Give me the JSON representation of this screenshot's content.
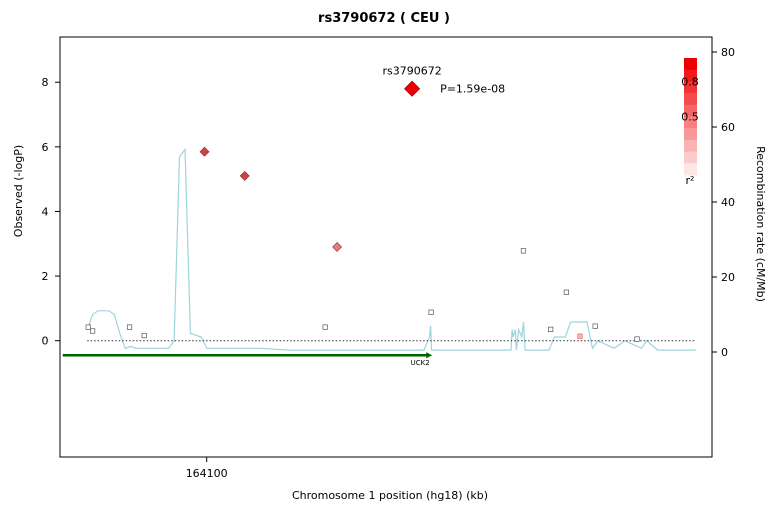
{
  "chart_data": {
    "type": "scatter",
    "title": "rs3790672 ( CEU )",
    "xlabel": "Chromosome 1 position (hg18) (kb)",
    "ylabel": "Observed (-logP)",
    "y2label": "Recombination rate (cM/Mb)",
    "xlim": [
      164073,
      164193
    ],
    "ylim": [
      -3.6,
      9.4
    ],
    "y2lim": [
      -28,
      84
    ],
    "x_ticks": [
      164100
    ],
    "y_ticks": [
      0,
      2,
      4,
      6,
      8
    ],
    "y2_ticks": [
      0,
      20,
      40,
      60,
      80
    ],
    "grid": false,
    "colors": {
      "recombination": "#9ed4dc",
      "gene": "#006400",
      "lead_snp": "#ee0000",
      "baseline": "#333333"
    },
    "lead_snp": {
      "name": "rs3790672",
      "x": 164137.8,
      "y": 7.8,
      "p_label": "P=1.59e-08"
    },
    "snps": [
      {
        "x": 164099.6,
        "y": 5.85,
        "r2": 0.75
      },
      {
        "x": 164107.0,
        "y": 5.1,
        "r2": 0.75
      },
      {
        "x": 164124.0,
        "y": 2.9,
        "r2": 0.45
      },
      {
        "x": 164078.2,
        "y": 0.42,
        "r2": 0
      },
      {
        "x": 164079.0,
        "y": 0.3,
        "r2": 0
      },
      {
        "x": 164085.8,
        "y": 0.42,
        "r2": 0
      },
      {
        "x": 164088.5,
        "y": 0.16,
        "r2": 0
      },
      {
        "x": 164121.8,
        "y": 0.42,
        "r2": 0
      },
      {
        "x": 164141.3,
        "y": 0.88,
        "r2": 0
      },
      {
        "x": 164158.3,
        "y": 2.78,
        "r2": 0
      },
      {
        "x": 164163.3,
        "y": 0.35,
        "r2": 0
      },
      {
        "x": 164166.2,
        "y": 1.5,
        "r2": 0
      },
      {
        "x": 164168.7,
        "y": 0.14,
        "r2": 0.2
      },
      {
        "x": 164171.5,
        "y": 0.45,
        "r2": 0
      },
      {
        "x": 164179.2,
        "y": 0.05,
        "r2": 0
      }
    ],
    "recombination": {
      "x": [
        164078,
        164079,
        164080,
        164081,
        164082,
        164083,
        164084,
        164085,
        164086,
        164087,
        164090,
        164093,
        164094,
        164095,
        164096,
        164097,
        164099,
        164100,
        164105,
        164110,
        164115,
        164120,
        164130,
        164135,
        164140,
        164141,
        164141.2,
        164141.4,
        164145,
        164150,
        164156,
        164156.2,
        164156.4,
        164156.8,
        164157,
        164157.4,
        164158,
        164158.3,
        164158.6,
        164160,
        164163,
        164164,
        164166,
        164167,
        164170,
        164171,
        164172,
        164175,
        164177,
        164180,
        164181,
        164183,
        164185,
        164190
      ],
      "y": [
        6,
        10,
        11,
        11,
        11,
        10,
        5,
        1,
        1.5,
        1,
        1,
        1,
        3,
        52,
        54,
        5,
        4,
        1,
        1,
        1,
        0.5,
        0.5,
        0.5,
        0.5,
        0.5,
        4,
        7,
        0.5,
        0.5,
        0.5,
        0.5,
        6,
        4,
        6,
        0.5,
        6,
        4,
        8,
        0.5,
        0.5,
        0.5,
        4,
        4,
        8,
        8,
        1,
        3,
        1,
        3,
        1,
        3,
        0.5,
        0.5,
        0.5
      ]
    },
    "gene": {
      "name": "UCK2",
      "start": 164073.5,
      "end": 164141.5,
      "strand": "+"
    },
    "r2_legend": {
      "label": "r²",
      "ticks": [
        0.8,
        0.5
      ],
      "steps": 10,
      "color": "#ee0000"
    }
  }
}
